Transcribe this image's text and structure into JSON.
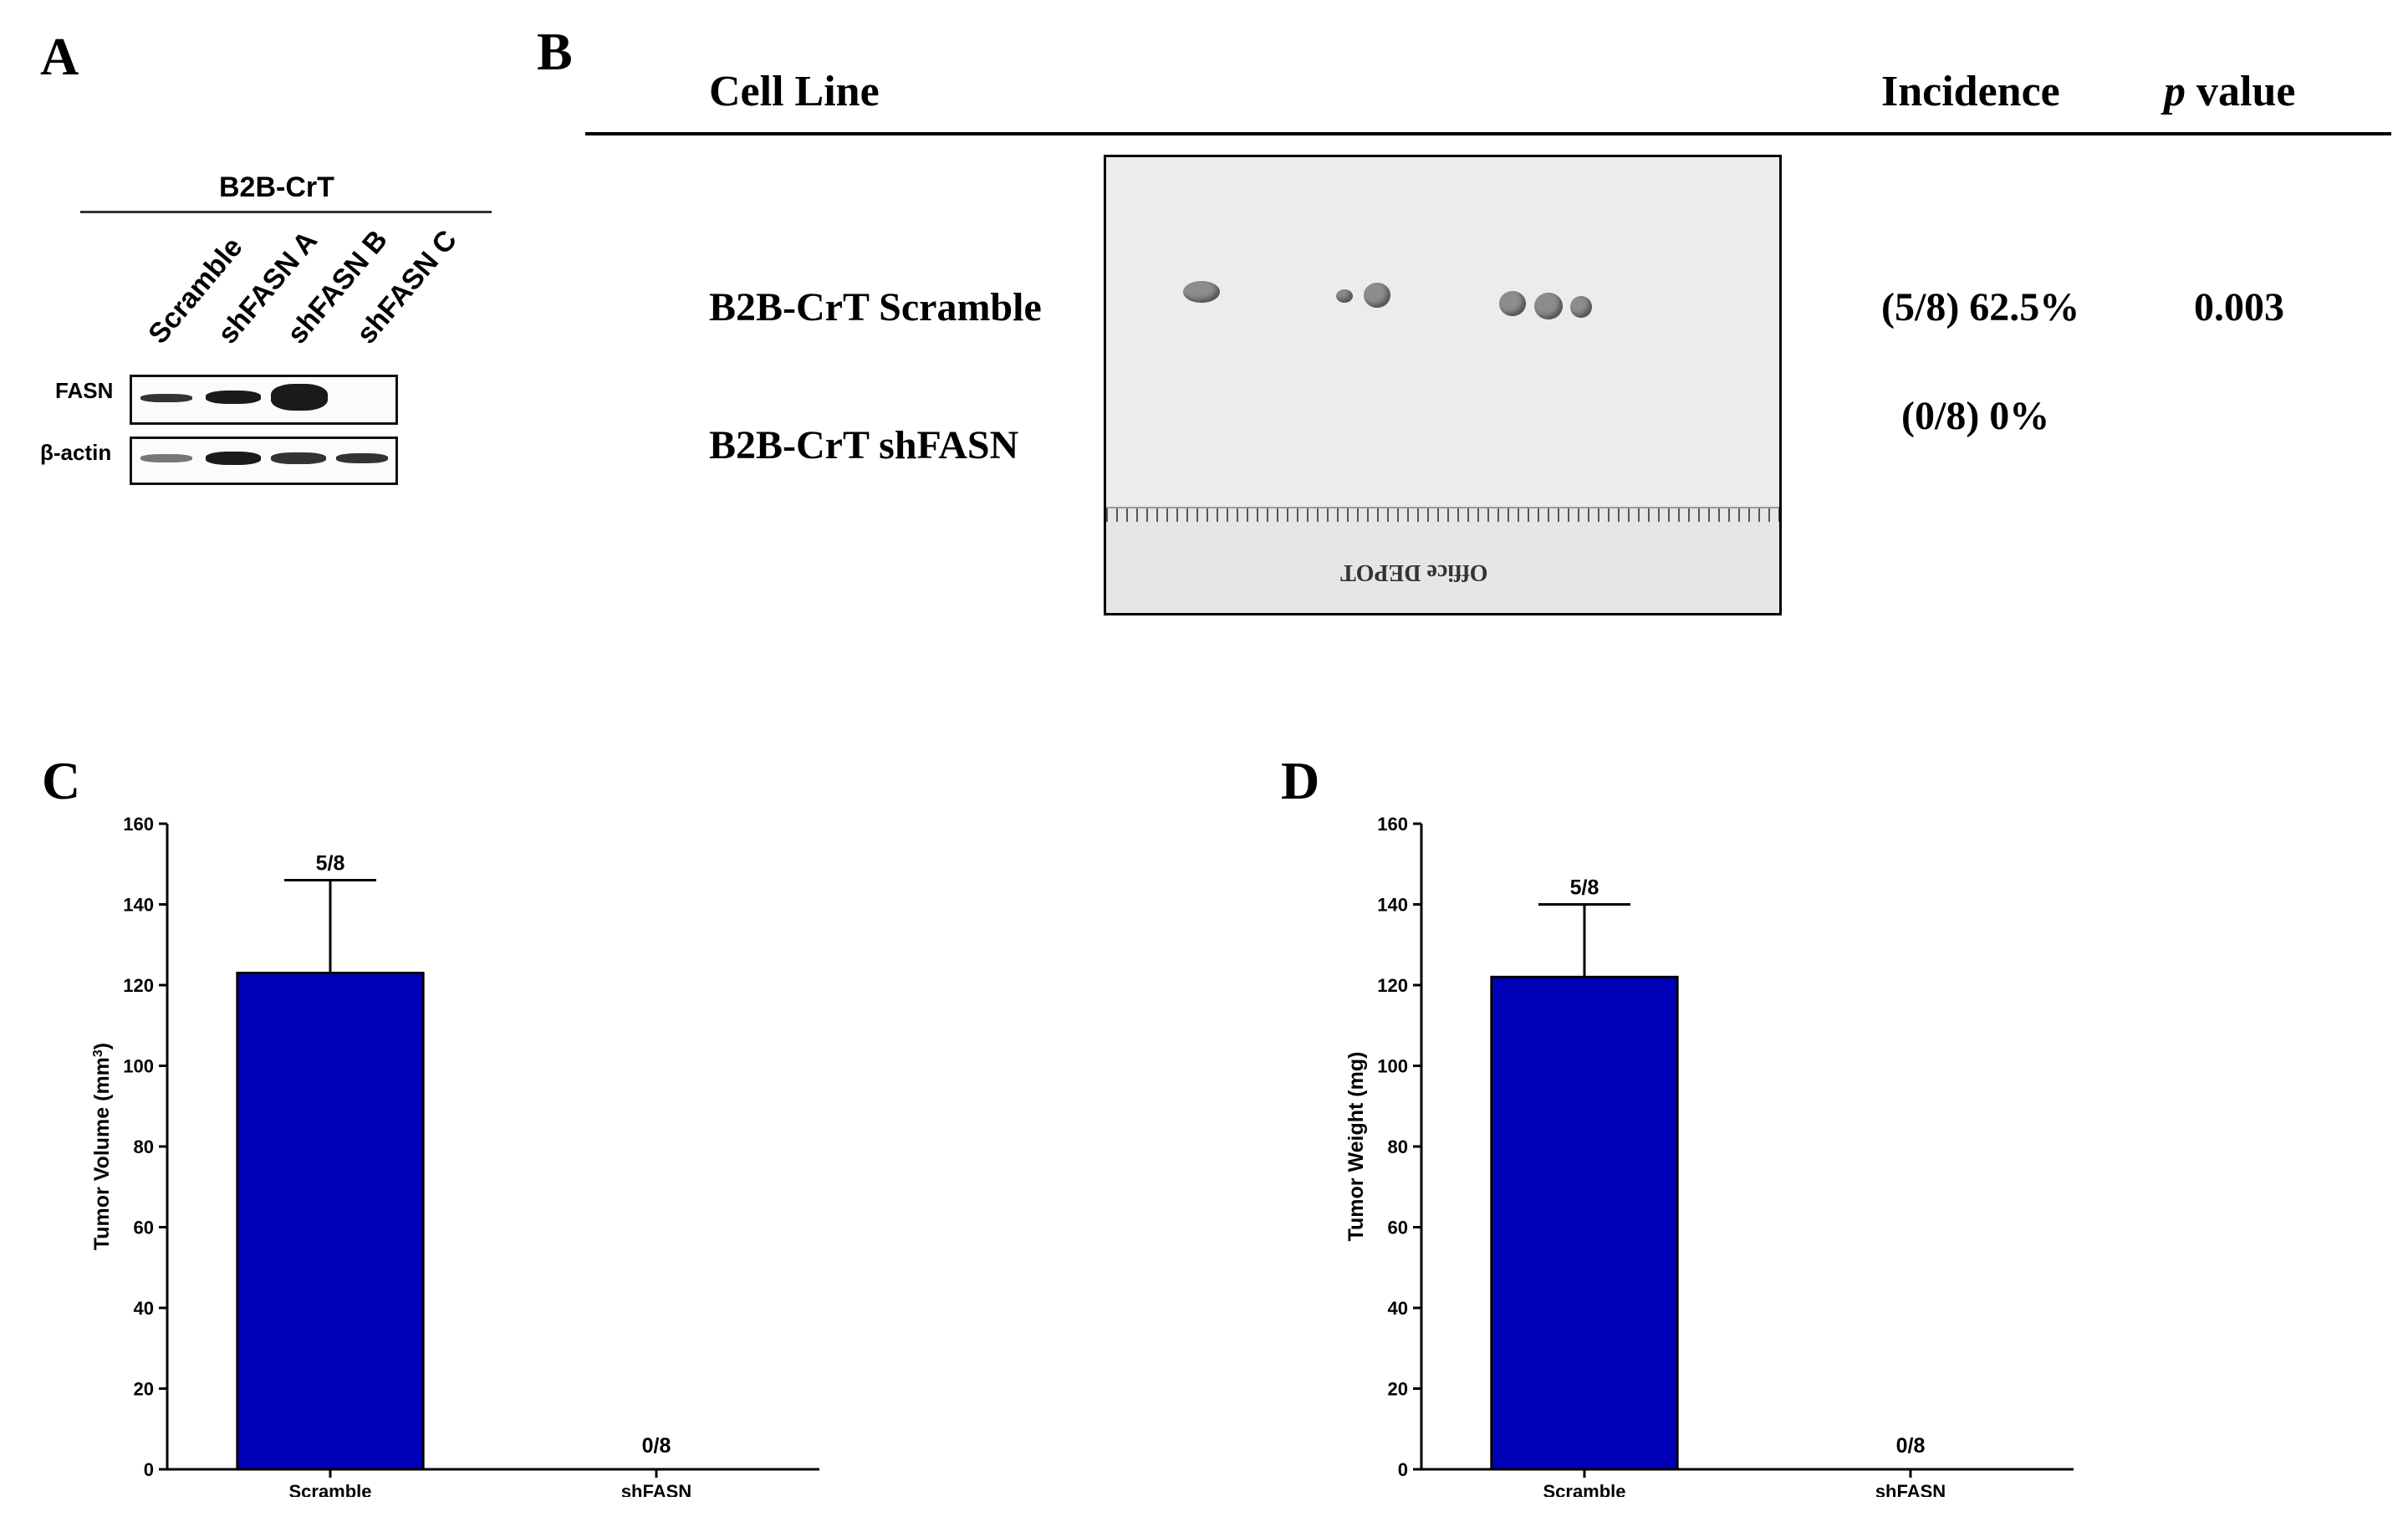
{
  "panel_a": {
    "letter": "A",
    "cell_line": "B2B-CrT",
    "lanes": [
      "Scramble",
      "shFASN A",
      "shFASN B",
      "shFASN C"
    ],
    "blots": [
      "FASN",
      "β-actin"
    ]
  },
  "panel_b": {
    "letter": "B",
    "headers": {
      "cell_line": "Cell Line",
      "incidence": "Incidence",
      "p_italic": "p",
      "p_rest": " value"
    },
    "rows": [
      {
        "cell_line": "B2B-CrT Scramble",
        "incidence": "(5/8) 62.5%",
        "p_value": "0.003"
      },
      {
        "cell_line": "B2B-CrT shFASN",
        "incidence": "(0/8) 0%",
        "p_value": ""
      }
    ],
    "photo_text": "Office DEPOT"
  },
  "panel_c": {
    "letter": "C"
  },
  "panel_d": {
    "letter": "D"
  },
  "chart_data": [
    {
      "type": "bar",
      "panel": "C",
      "categories": [
        "Scramble",
        "shFASN"
      ],
      "values": [
        123,
        0
      ],
      "errors": [
        23,
        0
      ],
      "annotations": [
        "5/8",
        "0/8"
      ],
      "ylabel_main": "Tumor Volume (mm",
      "ylabel_sup": "3",
      "ylabel_end": ")",
      "ylim": [
        0,
        160
      ],
      "yticks": [
        0,
        20,
        40,
        60,
        80,
        100,
        120,
        140,
        160
      ],
      "bar_color": "#0000b8"
    },
    {
      "type": "bar",
      "panel": "D",
      "categories": [
        "Scramble",
        "shFASN"
      ],
      "values": [
        122,
        0
      ],
      "errors": [
        18,
        0
      ],
      "annotations": [
        "5/8",
        "0/8"
      ],
      "ylabel_main": "Tumor Weight (mg)",
      "ylabel_sup": "",
      "ylabel_end": "",
      "ylim": [
        0,
        160
      ],
      "yticks": [
        0,
        20,
        40,
        60,
        80,
        100,
        120,
        140,
        160
      ],
      "bar_color": "#0000b8"
    }
  ]
}
